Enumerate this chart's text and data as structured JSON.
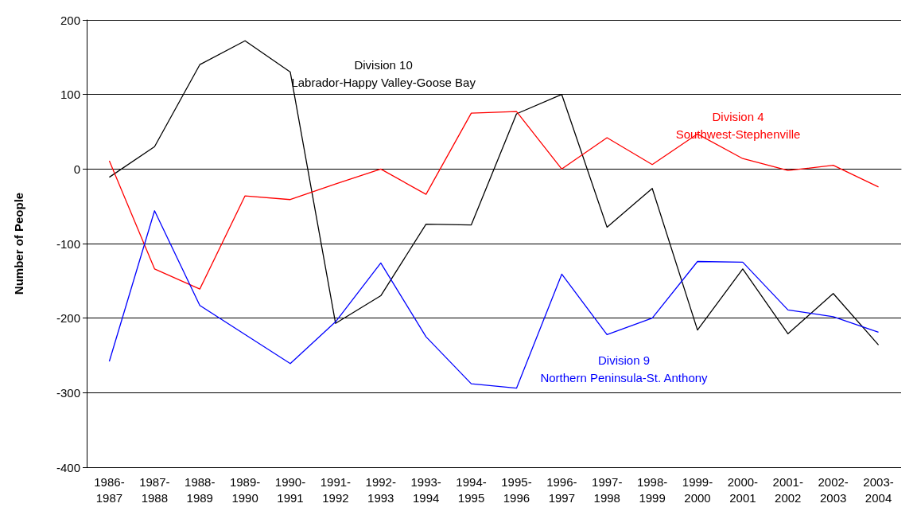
{
  "chart_data": {
    "type": "line",
    "ylabel": "Number of People",
    "categories": [
      "1986-1987",
      "1987-1988",
      "1988-1989",
      "1989-1990",
      "1990-1991",
      "1991-1992",
      "1992-1993",
      "1993-1994",
      "1994-1995",
      "1995-1996",
      "1996-1997",
      "1997-1998",
      "1998-1999",
      "1999-2000",
      "2000-2001",
      "2001-2002",
      "2002-2003",
      "2003-2004"
    ],
    "series": [
      {
        "color": "#000000",
        "values": [
          -11,
          30,
          140,
          172,
          130,
          -207,
          -170,
          -74,
          -75,
          74,
          100,
          -78,
          -26,
          -216,
          -134,
          -221,
          -167,
          -236
        ]
      },
      {
        "color": "#ff0000",
        "values": [
          11,
          -134,
          -161,
          -36,
          -41,
          -20,
          0,
          -34,
          75,
          77,
          0,
          42,
          6,
          47,
          14,
          -2,
          5,
          -24
        ]
      },
      {
        "color": "#0000ff",
        "values": [
          -258,
          -56,
          -183,
          -222,
          -261,
          -205,
          -126,
          -225,
          -288,
          -294,
          -141,
          -222,
          -200,
          -124,
          -125,
          -189,
          -198,
          -219
        ]
      }
    ],
    "annotations": [
      "Division 10\nLabrador-Happy Valley-Goose Bay",
      "Division 4\nSouthwest-Stephenville",
      "Division 9\nNorthern Peninsula-St. Anthony"
    ],
    "ylim": [
      -400,
      200
    ],
    "yticks": [
      -400,
      -300,
      -200,
      -100,
      0,
      100,
      200
    ],
    "grid": "y",
    "marker": "none",
    "line_style": "solid"
  }
}
